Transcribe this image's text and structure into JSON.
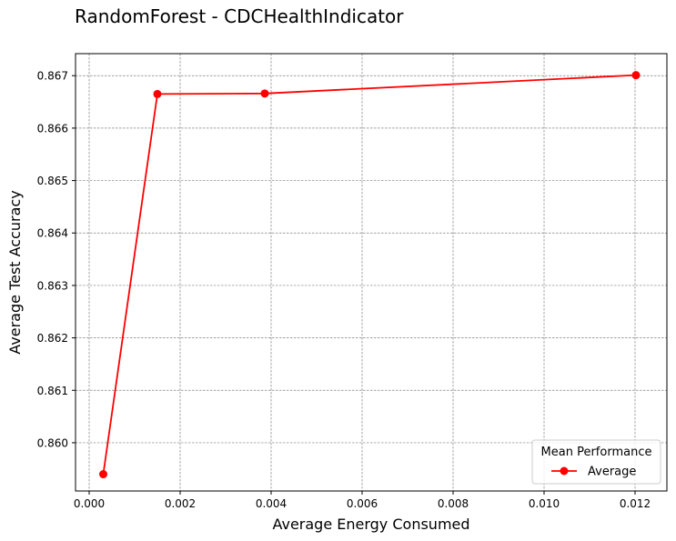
{
  "chart_data": {
    "type": "line",
    "title": "RandomForest - CDCHealthIndicator",
    "xlabel": "Average Energy Consumed",
    "ylabel": "Average Test Accuracy",
    "xlim": [
      -0.0003,
      0.0127
    ],
    "ylim": [
      0.85908,
      0.86742
    ],
    "x_ticks": [
      0.0,
      0.002,
      0.004,
      0.006,
      0.008,
      0.01,
      0.012
    ],
    "x_tick_labels": [
      "0.000",
      "0.002",
      "0.004",
      "0.006",
      "0.008",
      "0.010",
      "0.012"
    ],
    "y_ticks": [
      0.86,
      0.861,
      0.862,
      0.863,
      0.864,
      0.865,
      0.866,
      0.867
    ],
    "y_tick_labels": [
      "0.860",
      "0.861",
      "0.862",
      "0.863",
      "0.864",
      "0.865",
      "0.866",
      "0.867"
    ],
    "grid": true,
    "legend": {
      "title": "Mean Performance",
      "placement": "lower-right"
    },
    "series": [
      {
        "name": "Average",
        "color": "#ff0000",
        "marker": "circle",
        "x": [
          0.00031,
          0.0015,
          0.00386,
          0.01202
        ],
        "y": [
          0.8594,
          0.86665,
          0.86666,
          0.86701
        ]
      }
    ]
  }
}
